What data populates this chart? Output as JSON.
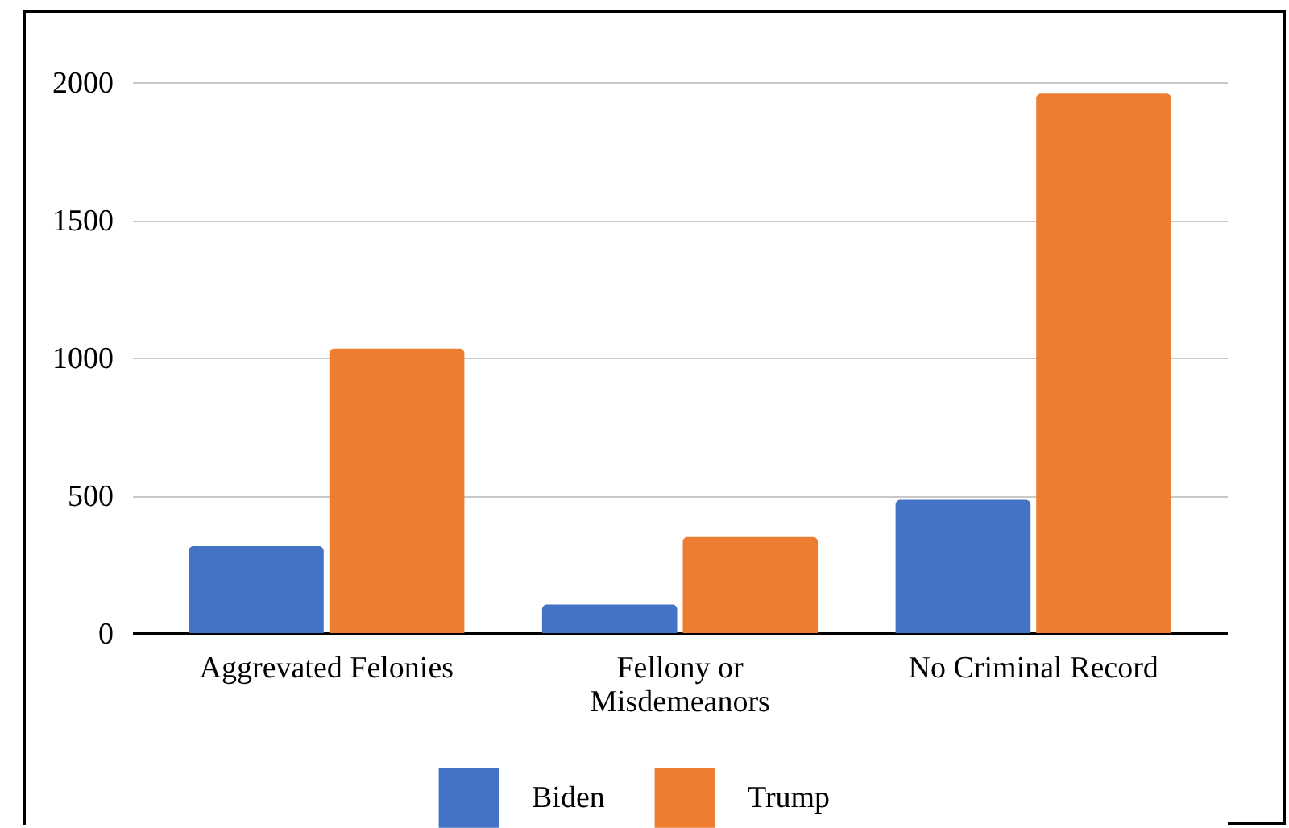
{
  "chart_data": {
    "type": "bar",
    "categories": [
      "Aggrevated Felonies",
      "Fellony or Misdemeanors",
      "No Criminal Record"
    ],
    "series": [
      {
        "name": "Biden",
        "color": "#4472c4",
        "values": [
          316,
          104,
          484
        ]
      },
      {
        "name": "Trump",
        "color": "#ed7d31",
        "values": [
          1033,
          349,
          1958
        ]
      }
    ],
    "ylim": [
      0,
      2000
    ],
    "yticks": [
      0,
      500,
      1000,
      1500,
      2000
    ],
    "grid": "y",
    "legend": "bottom"
  }
}
